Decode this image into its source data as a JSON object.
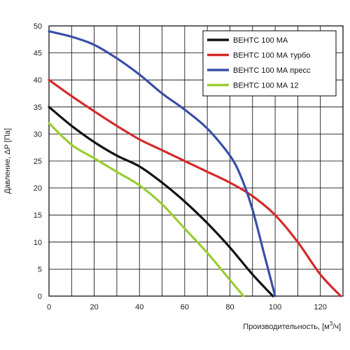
{
  "chart_data": {
    "type": "line",
    "xlabel_main": "Производительность, [м",
    "xlabel_sup": "3",
    "xlabel_tail": "/ч]",
    "ylabel": "Давление, ΔP [Па]",
    "xlim": [
      0,
      130
    ],
    "ylim": [
      0,
      50
    ],
    "x_ticks": [
      "0",
      "20",
      "40",
      "60",
      "80",
      "100",
      "120"
    ],
    "y_ticks": [
      "0",
      "5",
      "10",
      "15",
      "20",
      "25",
      "30",
      "35",
      "40",
      "45",
      "50"
    ],
    "grid": true,
    "legend_position": "top-right",
    "series": [
      {
        "name": "ВЕНТС 100 МА",
        "color": "#111111",
        "points": [
          [
            0,
            35
          ],
          [
            10,
            31.5
          ],
          [
            20,
            28.5
          ],
          [
            30,
            26
          ],
          [
            40,
            24
          ],
          [
            50,
            21
          ],
          [
            60,
            17.5
          ],
          [
            70,
            13.5
          ],
          [
            80,
            9
          ],
          [
            90,
            4
          ],
          [
            99,
            0
          ]
        ]
      },
      {
        "name": "ВЕНТС 100 МА турбо",
        "color": "#d42a2a",
        "points": [
          [
            0,
            40
          ],
          [
            10,
            37
          ],
          [
            20,
            34.2
          ],
          [
            30,
            31.5
          ],
          [
            40,
            29
          ],
          [
            50,
            27
          ],
          [
            60,
            25
          ],
          [
            70,
            23
          ],
          [
            80,
            21
          ],
          [
            90,
            18.5
          ],
          [
            100,
            15
          ],
          [
            110,
            10
          ],
          [
            120,
            4
          ],
          [
            129,
            0
          ]
        ]
      },
      {
        "name": "ВЕНТС 100 МА пресс",
        "color": "#3a4fa8",
        "points": [
          [
            0,
            49
          ],
          [
            10,
            48
          ],
          [
            20,
            46.5
          ],
          [
            30,
            44
          ],
          [
            40,
            41
          ],
          [
            50,
            37.5
          ],
          [
            60,
            34.5
          ],
          [
            70,
            31
          ],
          [
            80,
            26
          ],
          [
            85,
            22
          ],
          [
            90,
            16
          ],
          [
            95,
            8
          ],
          [
            100,
            0
          ]
        ]
      },
      {
        "name": "ВЕНТС 100 МА 12",
        "color": "#9acd32",
        "points": [
          [
            0,
            32
          ],
          [
            10,
            28
          ],
          [
            20,
            25.5
          ],
          [
            30,
            23
          ],
          [
            40,
            20.5
          ],
          [
            50,
            17
          ],
          [
            60,
            12.5
          ],
          [
            70,
            8
          ],
          [
            80,
            3
          ],
          [
            86,
            0
          ]
        ]
      }
    ]
  }
}
